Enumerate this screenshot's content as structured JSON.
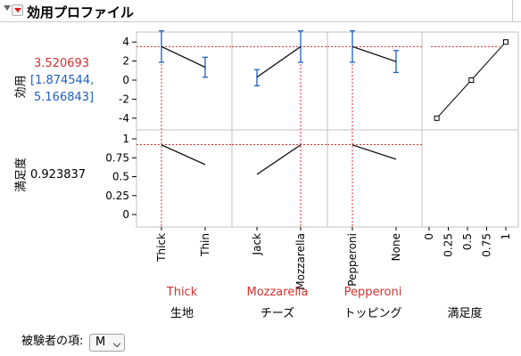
{
  "header": {
    "title": "効用プロファイル"
  },
  "utility": {
    "label": "効用",
    "value": "3.520693",
    "ci_low": "[1.874544,",
    "ci_high": "5.166843]"
  },
  "desirability": {
    "label": "満足度",
    "value": "0.923837"
  },
  "utility_ticks": [
    "4",
    "2",
    "0",
    "-2",
    "-4"
  ],
  "desirability_ticks": [
    "1",
    "0.75",
    "0.5",
    "0.25",
    "0"
  ],
  "factors": [
    {
      "name": "生地",
      "levels": [
        "Thick",
        "Thin"
      ],
      "current": "Thick",
      "utility": [
        3.52,
        1.35
      ],
      "ci": [
        [
          1.87,
          5.17
        ],
        [
          0.3,
          2.4
        ]
      ],
      "desirability": [
        0.92,
        0.66
      ]
    },
    {
      "name": "チーズ",
      "levels": [
        "Jack",
        "Mozzarella"
      ],
      "current": "Mozzarella",
      "utility": [
        0.3,
        3.52
      ],
      "ci": [
        [
          -0.6,
          1.1
        ],
        [
          1.87,
          5.17
        ]
      ],
      "desirability": [
        0.53,
        0.92
      ]
    },
    {
      "name": "トッピング",
      "levels": [
        "Pepperoni",
        "None"
      ],
      "current": "Pepperoni",
      "utility": [
        3.52,
        1.95
      ],
      "ci": [
        [
          1.87,
          5.17
        ],
        [
          0.8,
          3.1
        ]
      ],
      "desirability": [
        0.92,
        0.73
      ]
    }
  ],
  "desirability_function": {
    "name": "満足度",
    "x_ticks": [
      "0",
      "0.25",
      "0.5",
      "0.75",
      "1"
    ],
    "points": [
      [
        0.1,
        -4
      ],
      [
        0.55,
        0
      ],
      [
        1.0,
        4
      ]
    ],
    "current": 0.92
  },
  "subject": {
    "label": "被験者の項:",
    "value": "M"
  },
  "colors": {
    "line": "#000000",
    "ci": "#1f5fbf",
    "ref": "#d32f2f",
    "grid": "#c0c0c0"
  }
}
